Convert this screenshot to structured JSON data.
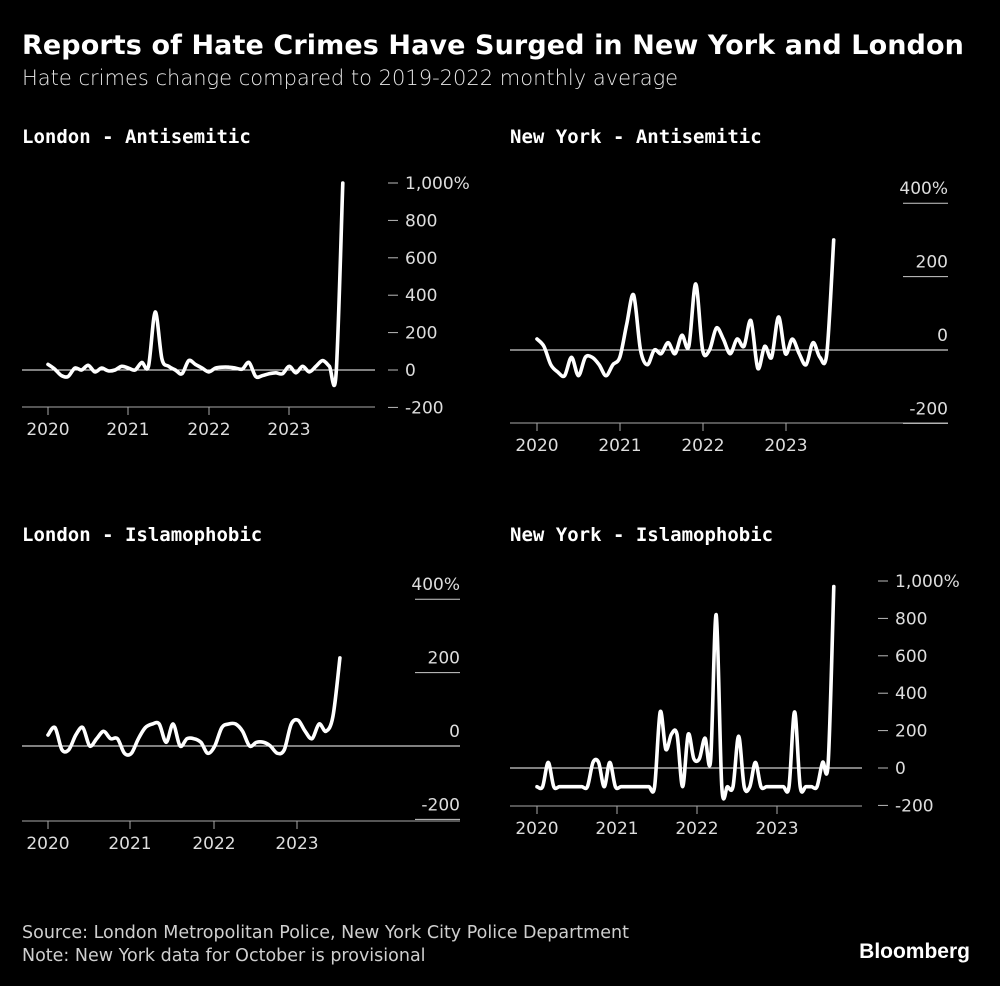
{
  "title": "Reports of Hate Crimes Have Surged in New York and London",
  "subtitle": "Hate crimes change compared to 2019-2022 monthly average",
  "footer": {
    "source": "Source: London Metropolitan Police, New York City Police Department",
    "note": "Note: New York data for October is provisional",
    "brand": "Bloomberg"
  },
  "colors": {
    "background": "#000000",
    "line": "#ffffff",
    "zero_line": "#ffffff"
  },
  "chart_data": [
    {
      "id": "london-antisemitic",
      "type": "line",
      "title": "London - Antisemitic",
      "x_tick_labels": [
        "2020",
        "2021",
        "2022",
        "2023"
      ],
      "y_tick_labels": [
        "1,000%",
        "800",
        "600",
        "400",
        "200",
        "0",
        "-200"
      ],
      "y_ticks": [
        1000,
        800,
        600,
        400,
        200,
        0,
        -200
      ],
      "ylim": [
        -200,
        1000
      ],
      "x_start": "2020-01",
      "series": [
        {
          "values": [
            30,
            5,
            -30,
            -35,
            10,
            0,
            25,
            -10,
            10,
            -5,
            0,
            20,
            10,
            0,
            40,
            20,
            310,
            60,
            20,
            0,
            -20,
            50,
            30,
            10,
            -10,
            10,
            15,
            15,
            10,
            5,
            40,
            -35,
            -30,
            -20,
            -15,
            -20,
            20,
            -15,
            20,
            -10,
            20,
            50,
            20,
            -20,
            1000
          ]
        }
      ]
    },
    {
      "id": "newyork-antisemitic",
      "type": "line",
      "title": "New York - Antisemitic",
      "x_tick_labels": [
        "2020",
        "2021",
        "2022",
        "2023"
      ],
      "y_tick_labels": [
        "400%",
        "200",
        "0",
        "-200"
      ],
      "y_ticks": [
        400,
        200,
        0,
        -200
      ],
      "ylim": [
        -200,
        400
      ],
      "x_start": "2020-01",
      "series": [
        {
          "values": [
            30,
            10,
            -40,
            -60,
            -70,
            -20,
            -70,
            -20,
            -20,
            -40,
            -70,
            -40,
            -20,
            70,
            150,
            0,
            -40,
            0,
            -10,
            20,
            -10,
            40,
            10,
            180,
            0,
            0,
            60,
            30,
            -10,
            30,
            10,
            80,
            -50,
            10,
            -20,
            90,
            -10,
            30,
            -10,
            -40,
            20,
            -20,
            -10,
            300
          ]
        }
      ]
    },
    {
      "id": "london-islamophobic",
      "type": "line",
      "title": "London - Islamophobic",
      "x_tick_labels": [
        "2020",
        "2021",
        "2022",
        "2023"
      ],
      "y_tick_labels": [
        "400%",
        "200",
        "0",
        "-200"
      ],
      "y_ticks": [
        400,
        200,
        0,
        -200
      ],
      "ylim": [
        -200,
        400
      ],
      "x_start": "2020-01",
      "series": [
        {
          "values": [
            30,
            50,
            -10,
            -10,
            30,
            50,
            0,
            20,
            40,
            20,
            20,
            -20,
            -20,
            20,
            50,
            60,
            60,
            10,
            60,
            0,
            20,
            20,
            10,
            -20,
            0,
            50,
            60,
            60,
            40,
            0,
            10,
            10,
            0,
            -20,
            -10,
            60,
            70,
            40,
            20,
            60,
            40,
            80,
            240
          ]
        }
      ]
    },
    {
      "id": "newyork-islamophobic",
      "type": "line",
      "title": "New York - Islamophobic",
      "x_tick_labels": [
        "2020",
        "2021",
        "2022",
        "2023"
      ],
      "y_tick_labels": [
        "1,000%",
        "800",
        "600",
        "400",
        "200",
        "0",
        "-200"
      ],
      "y_ticks": [
        1000,
        800,
        600,
        400,
        200,
        0,
        -200
      ],
      "ylim": [
        -200,
        1000
      ],
      "x_start": "2020-01",
      "series": [
        {
          "values": [
            -100,
            -100,
            30,
            -100,
            -100,
            -100,
            -100,
            -100,
            -100,
            -100,
            30,
            30,
            -100,
            30,
            -100,
            -100,
            -100,
            -100,
            -100,
            -100,
            -100,
            -100,
            300,
            100,
            180,
            180,
            -100,
            180,
            50,
            50,
            160,
            40,
            820,
            -100,
            -100,
            -100,
            170,
            -100,
            -100,
            30,
            -100,
            -100,
            -100,
            -100,
            -100,
            -100,
            300,
            -100,
            -100,
            -100,
            -100,
            30,
            30,
            970
          ]
        }
      ]
    }
  ]
}
